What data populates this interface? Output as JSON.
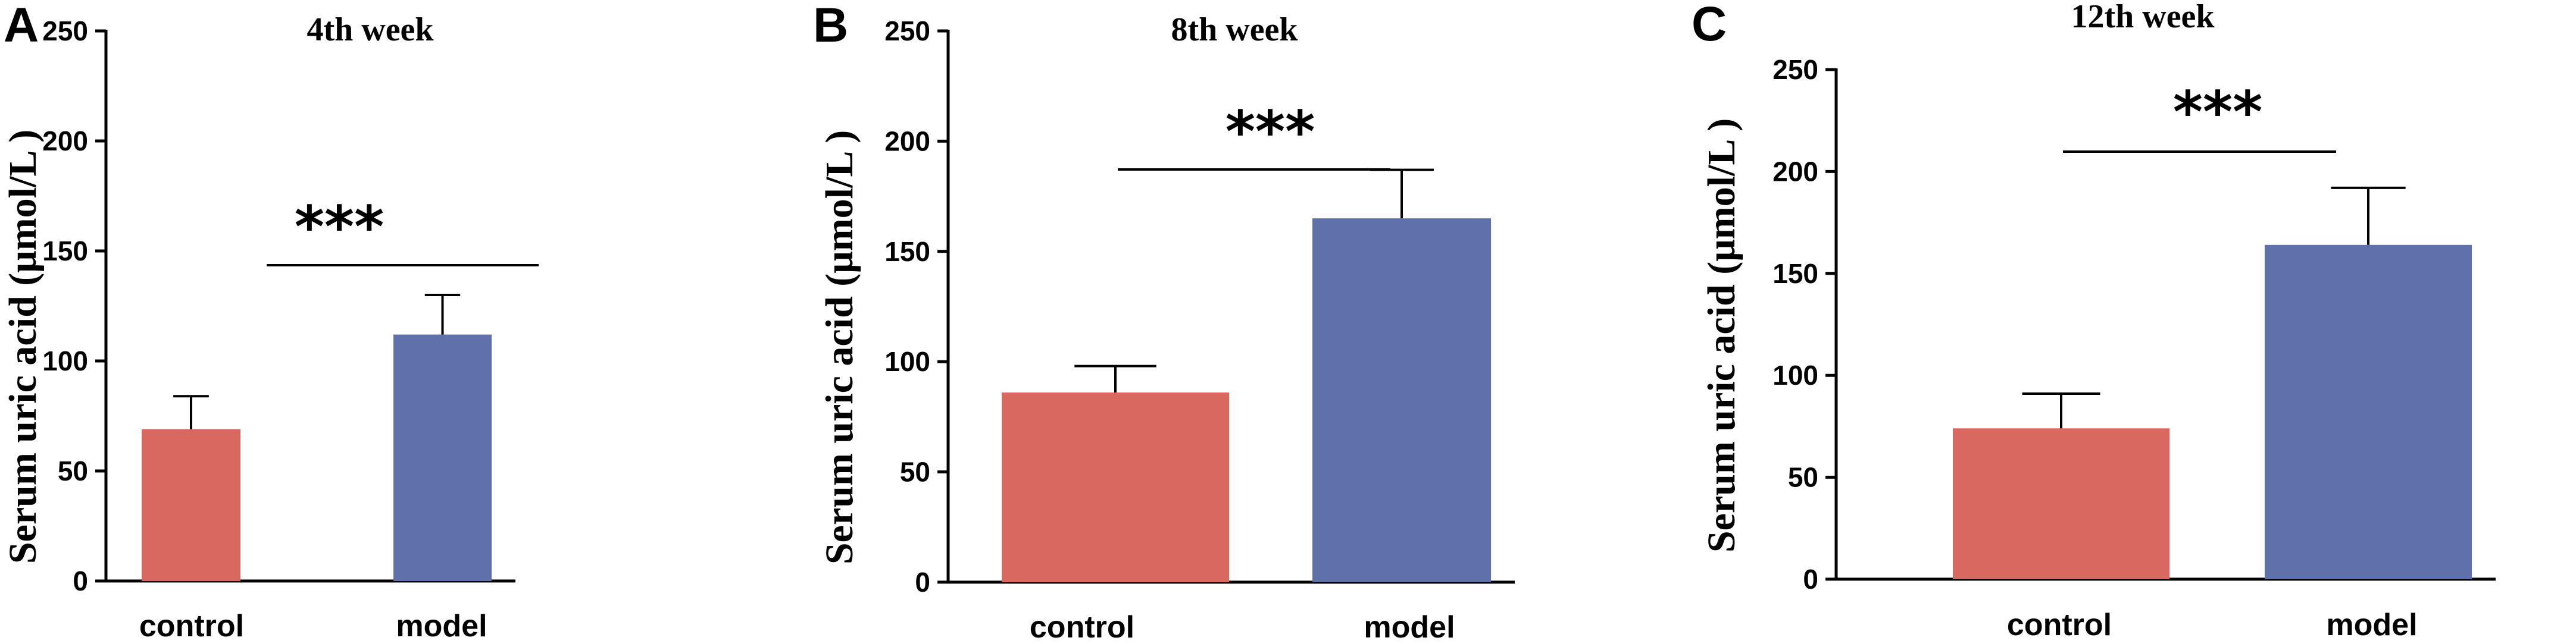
{
  "figure": {
    "panels": [
      {
        "letter": "A",
        "title": "4th week"
      },
      {
        "letter": "B",
        "title": "8th week"
      },
      {
        "letter": "C",
        "title": "12th week"
      }
    ]
  },
  "chart_data": [
    {
      "type": "bar",
      "panel": "A",
      "title": "4th week",
      "categories": [
        "control",
        "model"
      ],
      "values": [
        69,
        112
      ],
      "errors": [
        15,
        18
      ],
      "colors": [
        "#D86860",
        "#6070AA"
      ],
      "ylabel": "Serum uric acid (μmol/L )",
      "ylim": [
        0,
        250
      ],
      "yticks": [
        "0",
        "50",
        "100",
        "150",
        "200",
        "250"
      ],
      "significance": "***"
    },
    {
      "type": "bar",
      "panel": "B",
      "title": "8th week",
      "categories": [
        "control",
        "model"
      ],
      "values": [
        86,
        165
      ],
      "errors": [
        12,
        22
      ],
      "colors": [
        "#D86860",
        "#6070AA"
      ],
      "ylabel": "Serum uric acid (μmol/L )",
      "ylim": [
        0,
        250
      ],
      "yticks": [
        "0",
        "50",
        "100",
        "150",
        "200",
        "250"
      ],
      "significance": "***"
    },
    {
      "type": "bar",
      "panel": "C",
      "title": "12th week",
      "categories": [
        "control",
        "model"
      ],
      "values": [
        74,
        164
      ],
      "errors": [
        17,
        28
      ],
      "colors": [
        "#D86860",
        "#6070AA"
      ],
      "ylabel": "Serum uric acid (μmol/L )",
      "ylim": [
        0,
        250
      ],
      "yticks": [
        "0",
        "50",
        "100",
        "150",
        "200",
        "250"
      ],
      "significance": "***"
    }
  ]
}
